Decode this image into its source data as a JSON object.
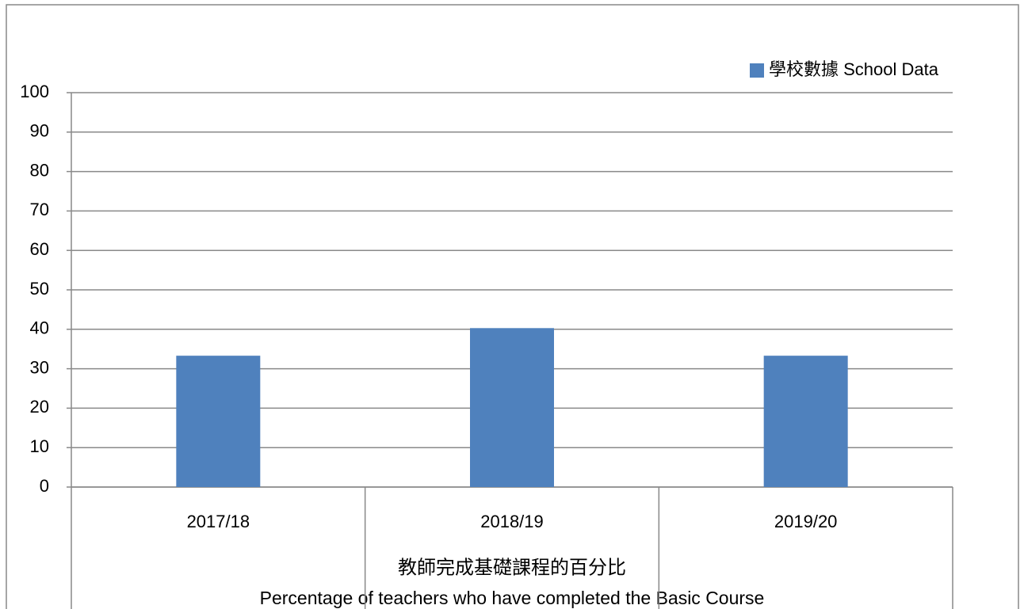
{
  "chart_data": {
    "type": "bar",
    "categories": [
      "2017/18",
      "2018/19",
      "2019/20"
    ],
    "series": [
      {
        "name": "學校數據 School Data",
        "color": "#4f81bd",
        "values": [
          33.3,
          40.3,
          33.3
        ]
      }
    ],
    "ylim": [
      0,
      100
    ],
    "yticks": [
      0,
      10,
      20,
      30,
      40,
      50,
      60,
      70,
      80,
      90,
      100
    ],
    "grid": true,
    "legend": "top-right",
    "xlabel": [
      "教師完成基礎課程的百分比",
      "Percentage of teachers who have completed the Basic Course"
    ]
  }
}
